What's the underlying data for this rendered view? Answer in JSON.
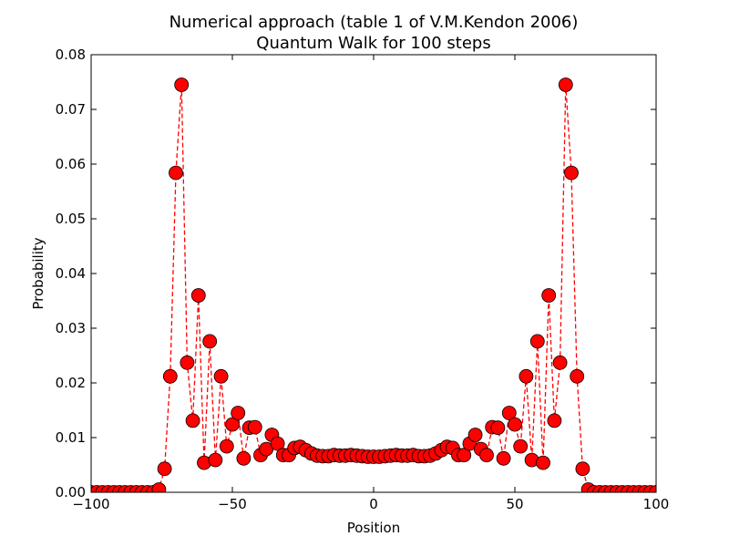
{
  "chart_data": {
    "type": "line",
    "title": "Numerical approach (table 1 of V.M.Kendon 2006)",
    "subtitle": "Quantum Walk for 100 steps",
    "xlabel": "Position",
    "ylabel": "Probability",
    "xlim": [
      -100,
      100
    ],
    "ylim": [
      0,
      0.08
    ],
    "xticks": [
      -100,
      -50,
      0,
      50,
      100
    ],
    "yticks": [
      0,
      0.01,
      0.02,
      0.03,
      0.04,
      0.05,
      0.06,
      0.07,
      0.08
    ],
    "xtick_labels": [
      "−100",
      "−50",
      "0",
      "50",
      "100"
    ],
    "ytick_labels": [
      "0.00",
      "0.01",
      "0.02",
      "0.03",
      "0.04",
      "0.05",
      "0.06",
      "0.07",
      "0.08"
    ],
    "grid": false,
    "series": [
      {
        "line_style": "dashed",
        "marker": "circle",
        "color": "#ff0000",
        "edge_color": "#000000",
        "x": [
          -100,
          -98,
          -96,
          -94,
          -92,
          -90,
          -88,
          -86,
          -84,
          -82,
          -80,
          -78,
          -76,
          -74,
          -72,
          -70,
          -68,
          -66,
          -64,
          -62,
          -60,
          -58,
          -56,
          -54,
          -52,
          -50,
          -48,
          -46,
          -44,
          -42,
          -40,
          -38,
          -36,
          -34,
          -32,
          -30,
          -28,
          -26,
          -24,
          -22,
          -20,
          -18,
          -16,
          -14,
          -12,
          -10,
          -8,
          -6,
          -4,
          -2,
          0,
          2,
          4,
          6,
          8,
          10,
          12,
          14,
          16,
          18,
          20,
          22,
          24,
          26,
          28,
          30,
          32,
          34,
          36,
          38,
          40,
          42,
          44,
          46,
          48,
          50,
          52,
          54,
          56,
          58,
          60,
          62,
          64,
          66,
          68,
          70,
          72,
          74,
          76,
          78,
          80,
          82,
          84,
          86,
          88,
          90,
          92,
          94,
          96,
          98,
          100
        ],
        "y": [
          0,
          0,
          0,
          0,
          0,
          0,
          0,
          0,
          0,
          0,
          0,
          0,
          0.0005,
          0.0043,
          0.0212,
          0.0584,
          0.0745,
          0.0237,
          0.0131,
          0.036,
          0.0054,
          0.0276,
          0.0059,
          0.0212,
          0.0084,
          0.0124,
          0.0145,
          0.0062,
          0.0118,
          0.0119,
          0.0068,
          0.0079,
          0.0105,
          0.0089,
          0.0068,
          0.0068,
          0.0081,
          0.0083,
          0.0077,
          0.0071,
          0.0067,
          0.0066,
          0.0066,
          0.0068,
          0.0067,
          0.0067,
          0.0068,
          0.0067,
          0.0066,
          0.0065,
          0.0065,
          0.0065,
          0.0066,
          0.0067,
          0.0068,
          0.0067,
          0.0067,
          0.0068,
          0.0066,
          0.0066,
          0.0067,
          0.0071,
          0.0077,
          0.0083,
          0.0081,
          0.0068,
          0.0068,
          0.0089,
          0.0105,
          0.0079,
          0.0068,
          0.0119,
          0.0118,
          0.0062,
          0.0145,
          0.0124,
          0.0084,
          0.0212,
          0.0059,
          0.0276,
          0.0054,
          0.036,
          0.0131,
          0.0237,
          0.0745,
          0.0584,
          0.0212,
          0.0043,
          0.0005,
          0,
          0,
          0,
          0,
          0,
          0,
          0,
          0,
          0,
          0,
          0,
          0
        ]
      }
    ]
  }
}
